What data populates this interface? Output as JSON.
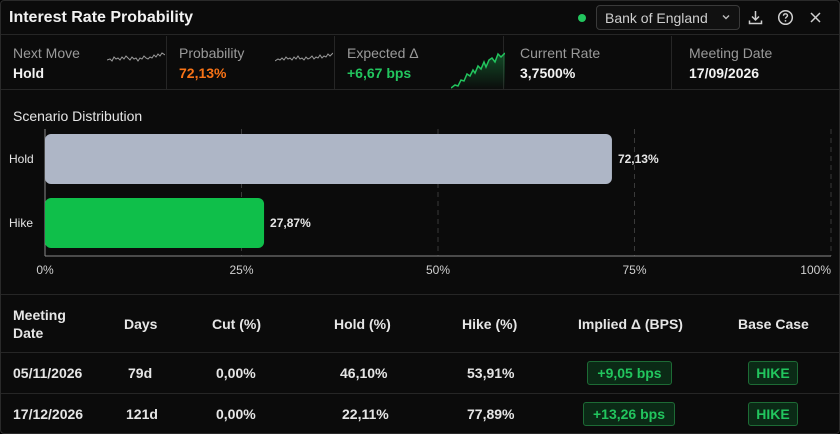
{
  "header": {
    "title": "Interest Rate Probability",
    "bank": "Bank of England",
    "status_color": "#22c55e"
  },
  "metrics": [
    {
      "label": "Next Move",
      "value": "Hold"
    },
    {
      "label": "Probability",
      "value": "72,13%",
      "value_color": "#f97316"
    },
    {
      "label": "Expected Δ",
      "value": "+6,67 bps",
      "value_color": "#22c55e"
    },
    {
      "label": "Current Rate",
      "value": "3,7500%"
    },
    {
      "label": "Meeting Date",
      "value": "17/09/2026"
    }
  ],
  "chart_data": {
    "type": "bar",
    "orientation": "horizontal",
    "title": "Scenario Distribution",
    "categories": [
      "Hold",
      "Hike"
    ],
    "values": [
      72.13,
      27.87
    ],
    "value_labels": [
      "72,13%",
      "27,87%"
    ],
    "colors": [
      "#aeb6c6",
      "#0fbf4a"
    ],
    "xlim": [
      0,
      100
    ],
    "x_ticks": [
      0,
      25,
      50,
      75,
      100
    ],
    "x_tick_labels": [
      "0%",
      "25%",
      "50%",
      "75%",
      "100%"
    ],
    "grid": "vertical dashed"
  },
  "table": {
    "headers": [
      "Meeting\nDate",
      "Days",
      "Cut (%)",
      "Hold (%)",
      "Hike (%)",
      "Implied Δ (BPS)",
      "Base Case"
    ],
    "rows": [
      {
        "date": "05/11/2026",
        "days": "79d",
        "cut": "0,00%",
        "hold": "46,10%",
        "hike": "53,91%",
        "implied": "+9,05 bps",
        "base": "HIKE"
      },
      {
        "date": "17/12/2026",
        "days": "121d",
        "cut": "0,00%",
        "hold": "22,11%",
        "hike": "77,89%",
        "implied": "+13,26 bps",
        "base": "HIKE"
      }
    ]
  }
}
